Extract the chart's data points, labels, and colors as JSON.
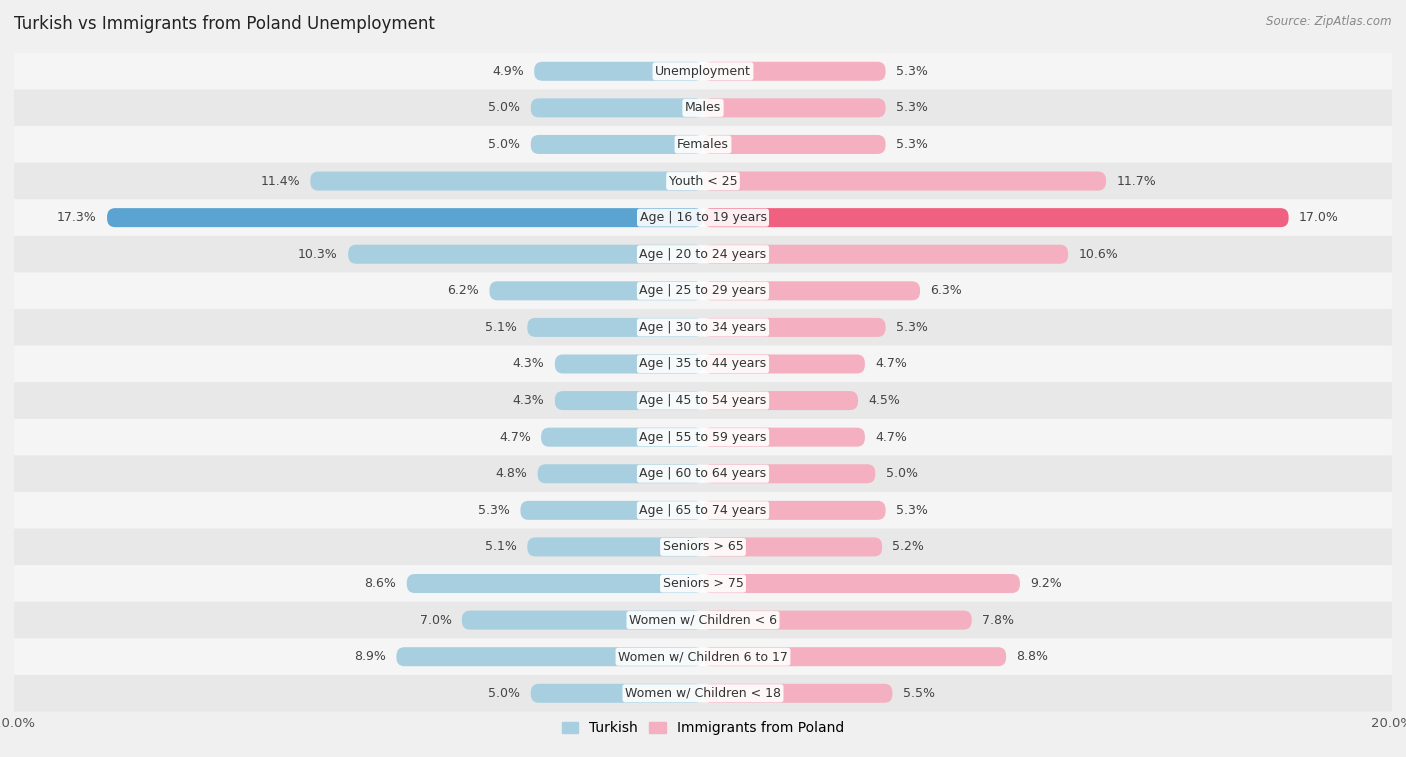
{
  "title": "Turkish vs Immigrants from Poland Unemployment",
  "source": "Source: ZipAtlas.com",
  "categories": [
    "Unemployment",
    "Males",
    "Females",
    "Youth < 25",
    "Age | 16 to 19 years",
    "Age | 20 to 24 years",
    "Age | 25 to 29 years",
    "Age | 30 to 34 years",
    "Age | 35 to 44 years",
    "Age | 45 to 54 years",
    "Age | 55 to 59 years",
    "Age | 60 to 64 years",
    "Age | 65 to 74 years",
    "Seniors > 65",
    "Seniors > 75",
    "Women w/ Children < 6",
    "Women w/ Children 6 to 17",
    "Women w/ Children < 18"
  ],
  "turkish": [
    4.9,
    5.0,
    5.0,
    11.4,
    17.3,
    10.3,
    6.2,
    5.1,
    4.3,
    4.3,
    4.7,
    4.8,
    5.3,
    5.1,
    8.6,
    7.0,
    8.9,
    5.0
  ],
  "poland": [
    5.3,
    5.3,
    5.3,
    11.7,
    17.0,
    10.6,
    6.3,
    5.3,
    4.7,
    4.5,
    4.7,
    5.0,
    5.3,
    5.2,
    9.2,
    7.8,
    8.8,
    5.5
  ],
  "turkish_color": "#a8cfe0",
  "poland_color": "#f4b0c0",
  "turkish_highlight_color": "#5ba3d0",
  "poland_highlight_color": "#f06080",
  "row_bg_even": "#f5f5f5",
  "row_bg_odd": "#e8e8e8",
  "fig_bg": "#f0f0f0",
  "xlim": 20.0,
  "bar_height": 0.52,
  "label_fontsize": 9.0,
  "category_fontsize": 9.0,
  "title_fontsize": 12,
  "source_fontsize": 8.5
}
